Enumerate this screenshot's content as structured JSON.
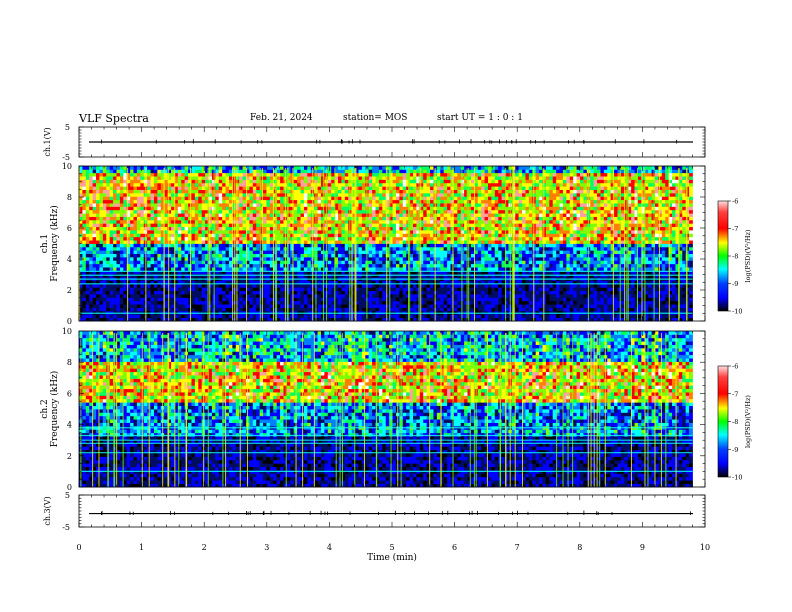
{
  "header": {
    "title": "VLF Spectra",
    "date": "Feb. 21, 2024",
    "station": "station= MOS",
    "start_ut": "start  UT =   1 : 0  : 1"
  },
  "colors": {
    "colormap": [
      "#000000",
      "#000d60",
      "#0000ff",
      "#0080ff",
      "#00ffff",
      "#00ff60",
      "#80ff00",
      "#ffff00",
      "#ff8000",
      "#ff0000",
      "#ffa0a0",
      "#ffffff"
    ],
    "trace": "#000000",
    "axis": "#000000"
  },
  "chart_data": [
    {
      "type": "line",
      "ylabel": "ch.1(V)",
      "ylim": [
        -5,
        5
      ],
      "yticks": [
        "5",
        "-5"
      ],
      "xlim": [
        0,
        10
      ],
      "y_level": 0,
      "note": "flat waveform trace with sparse spikes"
    },
    {
      "type": "heatmap",
      "ylabel_lines": [
        "ch.1",
        "Frequency (kHz)"
      ],
      "ylim": [
        0,
        10
      ],
      "yticks": [
        "0",
        "2",
        "4",
        "6",
        "8",
        "10"
      ],
      "xlim": [
        0,
        10
      ],
      "data_end_min": 9.8,
      "colorbar": {
        "label": "log(PSD)(V²/Hz)",
        "range": [
          -10,
          -6
        ],
        "ticks": [
          "-6",
          "-7",
          "-8",
          "-9",
          "-10"
        ]
      },
      "bands_khz": [
        0.5,
        2.4,
        2.7,
        2.95,
        3.2
      ],
      "hot_band_khz": [
        5,
        9.5
      ]
    },
    {
      "type": "heatmap",
      "ylabel_lines": [
        "ch.2",
        "Frequency (kHz)"
      ],
      "ylim": [
        0,
        10
      ],
      "yticks": [
        "0",
        "2",
        "4",
        "6",
        "8",
        "10"
      ],
      "xlim": [
        0,
        10
      ],
      "data_end_min": 9.8,
      "colorbar": {
        "label": "log(PSD)(V²/Hz)",
        "range": [
          -10,
          -6
        ],
        "ticks": [
          "-6",
          "-7",
          "-8",
          "-9",
          "-10"
        ]
      },
      "bands_khz": [
        1.0,
        2.2,
        2.8,
        3.0,
        3.3,
        3.8
      ],
      "hot_band_khz": [
        5.5,
        8
      ]
    },
    {
      "type": "line",
      "ylabel": "ch.3(V)",
      "ylim": [
        -5,
        5
      ],
      "yticks": [
        "5",
        "-5"
      ],
      "xlim": [
        0,
        10
      ],
      "y_level": -0.8,
      "xlabel": "Time (min)",
      "xticks": [
        "0",
        "1",
        "2",
        "3",
        "4",
        "5",
        "6",
        "7",
        "8",
        "9",
        "10"
      ]
    }
  ]
}
